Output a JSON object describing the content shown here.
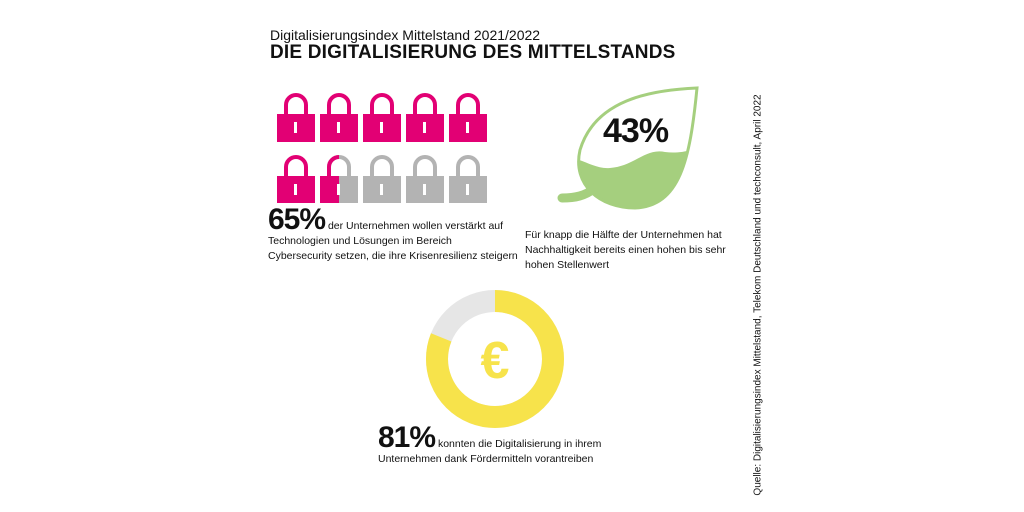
{
  "header": {
    "subtitle": "Digitalisierungsindex Mittelstand 2021/2022",
    "title": "DIE DIGITALISIERUNG DES MITTELSTANDS"
  },
  "cyber": {
    "percent": "65%",
    "value": 65,
    "text": "der Unternehmen wollen verstärkt auf Technologien und Lösungen im Bereich Cybersecurity setzen, die ihre Krisenresilienz steigern",
    "icon": "lock-icon",
    "colors": {
      "filled": "#e20074",
      "empty": "#b3b3b3"
    }
  },
  "sustainability": {
    "percent": "43%",
    "value": 43,
    "text": "Für knapp die Hälfte der Unternehmen hat Nachhaltigkeit bereits einen hohen bis sehr hohen Stellenwert",
    "icon": "leaf-icon",
    "color": "#a5cf7e"
  },
  "funding": {
    "percent": "81%",
    "value": 81,
    "text": "konnten die Digitalisierung in ihrem Unternehmen dank Fördermitteln vorantreiben",
    "icon": "euro-icon",
    "colors": {
      "filled": "#f7e34b",
      "empty": "#e6e6e6"
    }
  },
  "source": "Quelle: Digitalisierungsindex Mittelstand, Telekom Deutschland und techconsult, April 2022"
}
